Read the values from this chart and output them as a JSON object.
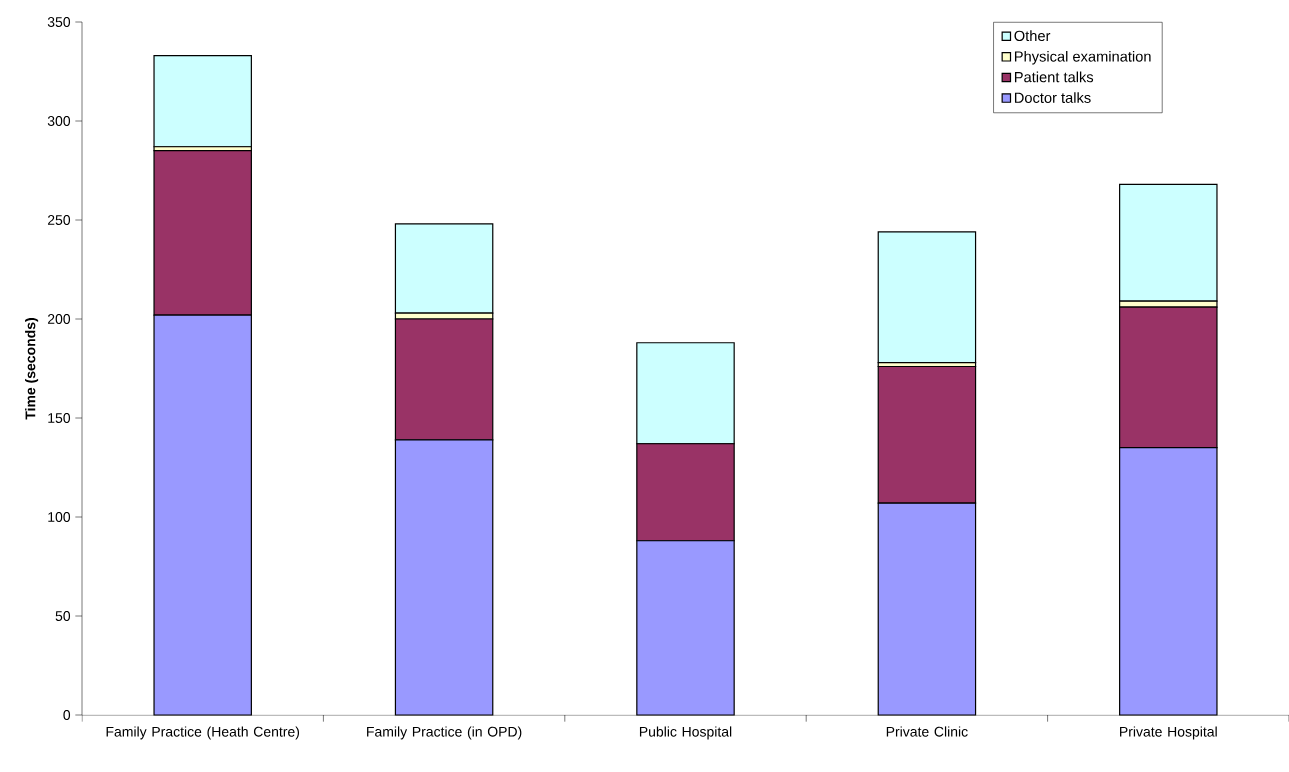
{
  "chart_data": {
    "type": "bar",
    "stacked": true,
    "ylabel": "Time (seconds)",
    "categories": [
      "Family Practice (Heath Centre)",
      "Family Practice (in OPD)",
      "Public Hospital",
      "Private Clinic",
      "Private Hospital"
    ],
    "series": [
      {
        "name": "Doctor talks",
        "color": "#9999ff",
        "values": [
          202,
          139,
          88,
          107,
          135
        ]
      },
      {
        "name": "Patient talks",
        "color": "#993366",
        "values": [
          83,
          61,
          49,
          69,
          71
        ]
      },
      {
        "name": "Physical examination",
        "color": "#ffffcc",
        "values": [
          2,
          3,
          0,
          2,
          3
        ]
      },
      {
        "name": "Other",
        "color": "#ccffff",
        "values": [
          46,
          45,
          51,
          66,
          59
        ]
      }
    ],
    "ylim": [
      0,
      350
    ],
    "yticks": [
      0,
      50,
      100,
      150,
      200,
      250,
      300,
      350
    ],
    "grid": false,
    "legend": "top right"
  }
}
